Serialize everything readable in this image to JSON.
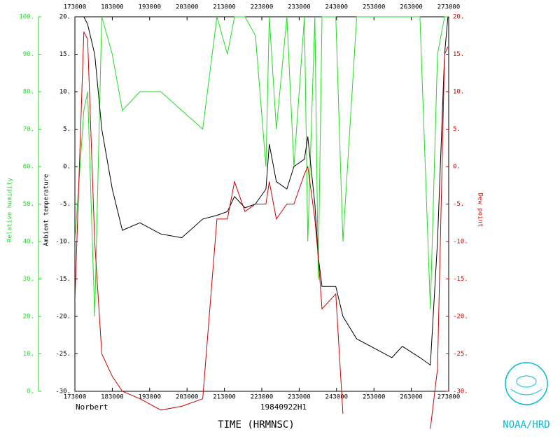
{
  "chart_data": {
    "type": "line",
    "storm": "Norbert",
    "flight": "19840922H1",
    "xlabel": "TIME (HRMNSC)",
    "ylabel": "Ambient temperature",
    "y2label": "Dew point",
    "y3label": "Relative humidity",
    "logo": "NOAA/HRD",
    "xlim": [
      173000,
      273000
    ],
    "xticks": [
      173000,
      183000,
      193000,
      203000,
      213000,
      223000,
      233000,
      243000,
      253000,
      263000,
      273000
    ],
    "ylim": [
      -30,
      20
    ],
    "yticks": [
      {
        "value": -30,
        "label": "-30."
      },
      {
        "value": -25,
        "label": "-25."
      },
      {
        "value": -20,
        "label": "-20."
      },
      {
        "value": -15,
        "label": "-15."
      },
      {
        "value": -10,
        "label": "-10."
      },
      {
        "value": -5,
        "label": "-5."
      },
      {
        "value": 0,
        "label": "0."
      },
      {
        "value": 5,
        "label": "5."
      },
      {
        "value": 10,
        "label": "10."
      },
      {
        "value": 15,
        "label": "15."
      },
      {
        "value": 20,
        "label": "20."
      }
    ],
    "y2lim": [
      -30,
      20
    ],
    "y2ticks": [
      {
        "value": -30,
        "label": "-30."
      },
      {
        "value": -25,
        "label": "-25."
      },
      {
        "value": -20,
        "label": "-20."
      },
      {
        "value": -15,
        "label": "-15."
      },
      {
        "value": -10,
        "label": "-10."
      },
      {
        "value": -5,
        "label": "-5."
      },
      {
        "value": 0,
        "label": "0."
      },
      {
        "value": 5,
        "label": "5."
      },
      {
        "value": 10,
        "label": "10."
      },
      {
        "value": 15,
        "label": "15."
      },
      {
        "value": 20,
        "label": "20."
      }
    ],
    "y3lim": [
      0,
      100
    ],
    "y3ticks": [
      {
        "value": 0,
        "label": "0."
      },
      {
        "value": 10,
        "label": "10."
      },
      {
        "value": 20,
        "label": "20."
      },
      {
        "value": 30,
        "label": "30."
      },
      {
        "value": 40,
        "label": "40."
      },
      {
        "value": 50,
        "label": "50."
      },
      {
        "value": 60,
        "label": "60."
      },
      {
        "value": 70,
        "label": "70."
      },
      {
        "value": 80,
        "label": "80."
      },
      {
        "value": 90,
        "label": "90."
      },
      {
        "value": 100,
        "label": "100."
      }
    ],
    "x": [
      173000,
      175400,
      176400,
      178300,
      180200,
      183000,
      185700,
      190400,
      196000,
      201600,
      207200,
      211000,
      213800,
      215700,
      218500,
      221300,
      224100,
      225000,
      226900,
      229700,
      231600,
      234400,
      235300,
      237200,
      238100,
      239100,
      242800,
      244700,
      248400,
      254000,
      257800,
      260600,
      265300,
      268100,
      270000,
      271900,
      272800
    ],
    "series": [
      {
        "name": "Relative humidity",
        "color": "#22dd22",
        "axis": "y3",
        "values": [
          40,
          75,
          80,
          20,
          100,
          90,
          75,
          80,
          80,
          75,
          70,
          100,
          90,
          100,
          100,
          95,
          60,
          100,
          70,
          100,
          60,
          100,
          40,
          100,
          30,
          100,
          100,
          40,
          100,
          100,
          100,
          100,
          100,
          22,
          90,
          100,
          100
        ]
      },
      {
        "name": "Ambient temperature",
        "color": "#000000",
        "axis": "y",
        "values": [
          null,
          20,
          19,
          15,
          5,
          -3,
          -8.5,
          -7.5,
          -9,
          -9.5,
          -7,
          -6.5,
          -6,
          -4,
          -5.5,
          -5,
          -3,
          3,
          -2,
          -3,
          0,
          1,
          4,
          -5,
          -12,
          -16,
          -16,
          -20,
          -23,
          -24.5,
          -25.5,
          -24,
          -25.5,
          -26.5,
          -10,
          15,
          20
        ]
      },
      {
        "name": "Dew point",
        "color": "#cc0000",
        "axis": "y2",
        "values": [
          -18,
          18,
          17,
          -10,
          -25,
          -28,
          -30,
          -31,
          -32.5,
          -32,
          -31,
          -7,
          -7,
          -2,
          -6,
          -5,
          -5,
          -2,
          -7,
          -5,
          -5,
          -1,
          0,
          -7,
          -12,
          -19,
          -17,
          -33,
          null,
          null,
          null,
          null,
          null,
          -35,
          -27,
          15,
          16
        ]
      }
    ]
  }
}
